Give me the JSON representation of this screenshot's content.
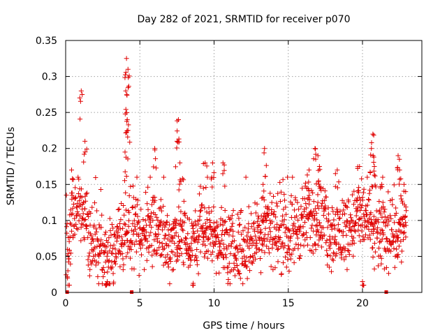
{
  "chart_data": {
    "type": "scatter",
    "title": "Day 282 of 2021, SRMTID for receiver p070",
    "xlabel": "GPS time / hours",
    "ylabel": "SRMTID / TECUs",
    "xlim": [
      0,
      24
    ],
    "ylim": [
      0,
      0.35
    ],
    "x_ticks": [
      0,
      5,
      10,
      15,
      20
    ],
    "x_tick_labels": [
      "0",
      "5",
      "10",
      "15",
      "20"
    ],
    "y_ticks": [
      0,
      0.05,
      0.1,
      0.15,
      0.2,
      0.25,
      0.3,
      0.35
    ],
    "y_tick_labels": [
      "0",
      "0.05",
      "0.1",
      "0.15",
      "0.2",
      "0.25",
      "0.3",
      "0.35"
    ],
    "grid": true,
    "marker": "+",
    "color": "#e00000",
    "series": [
      {
        "name": "SRMTID",
        "profile": [
          [
            0.1,
            0.05
          ],
          [
            0.5,
            0.1
          ],
          [
            1.0,
            0.12
          ],
          [
            1.5,
            0.08
          ],
          [
            2.0,
            0.07
          ],
          [
            2.5,
            0.05
          ],
          [
            3.0,
            0.05
          ],
          [
            3.5,
            0.06
          ],
          [
            4.0,
            0.09
          ],
          [
            4.5,
            0.08
          ],
          [
            5.0,
            0.07
          ],
          [
            5.5,
            0.09
          ],
          [
            6.0,
            0.1
          ],
          [
            6.5,
            0.07
          ],
          [
            7.0,
            0.07
          ],
          [
            7.5,
            0.08
          ],
          [
            8.0,
            0.08
          ],
          [
            8.5,
            0.06
          ],
          [
            9.0,
            0.07
          ],
          [
            9.5,
            0.09
          ],
          [
            10.0,
            0.08
          ],
          [
            10.5,
            0.07
          ],
          [
            11.0,
            0.06
          ],
          [
            11.5,
            0.06
          ],
          [
            12.0,
            0.06
          ],
          [
            12.5,
            0.07
          ],
          [
            13.0,
            0.08
          ],
          [
            13.5,
            0.1
          ],
          [
            14.0,
            0.09
          ],
          [
            14.5,
            0.08
          ],
          [
            15.0,
            0.08
          ],
          [
            15.5,
            0.09
          ],
          [
            16.0,
            0.1
          ],
          [
            16.5,
            0.1
          ],
          [
            17.0,
            0.11
          ],
          [
            17.5,
            0.09
          ],
          [
            18.0,
            0.08
          ],
          [
            18.5,
            0.08
          ],
          [
            19.0,
            0.09
          ],
          [
            19.5,
            0.1
          ],
          [
            20.0,
            0.11
          ],
          [
            20.5,
            0.09
          ],
          [
            21.0,
            0.08
          ],
          [
            21.5,
            0.08
          ],
          [
            22.0,
            0.09
          ],
          [
            22.5,
            0.08
          ],
          [
            22.9,
            0.1
          ]
        ],
        "peaks": [
          [
            0.4,
            0.17
          ],
          [
            1.05,
            0.28
          ],
          [
            1.3,
            0.21
          ],
          [
            4.1,
            0.325
          ],
          [
            4.2,
            0.31
          ],
          [
            4.05,
            0.28
          ],
          [
            4.15,
            0.24
          ],
          [
            4.0,
            0.195
          ],
          [
            4.2,
            0.225
          ],
          [
            6.0,
            0.2
          ],
          [
            7.6,
            0.24
          ],
          [
            7.5,
            0.21
          ],
          [
            7.7,
            0.18
          ],
          [
            9.4,
            0.18
          ],
          [
            9.9,
            0.18
          ],
          [
            10.6,
            0.18
          ],
          [
            13.4,
            0.2
          ],
          [
            13.3,
            0.15
          ],
          [
            16.8,
            0.2
          ],
          [
            17.0,
            0.19
          ],
          [
            16.4,
            0.17
          ],
          [
            17.1,
            0.175
          ],
          [
            18.3,
            0.17
          ],
          [
            19.8,
            0.175
          ],
          [
            20.7,
            0.22
          ],
          [
            20.6,
            0.2
          ],
          [
            20.8,
            0.175
          ],
          [
            21.3,
            0.15
          ],
          [
            22.4,
            0.19
          ],
          [
            22.5,
            0.17
          ],
          [
            22.8,
            0.15
          ],
          [
            0.15,
            0.03
          ],
          [
            8.6,
            0.01
          ],
          [
            20.0,
            0.015
          ],
          [
            2.8,
            0.015
          ]
        ],
        "data_gaps": [
          0.1,
          4.45,
          21.6
        ]
      }
    ]
  }
}
